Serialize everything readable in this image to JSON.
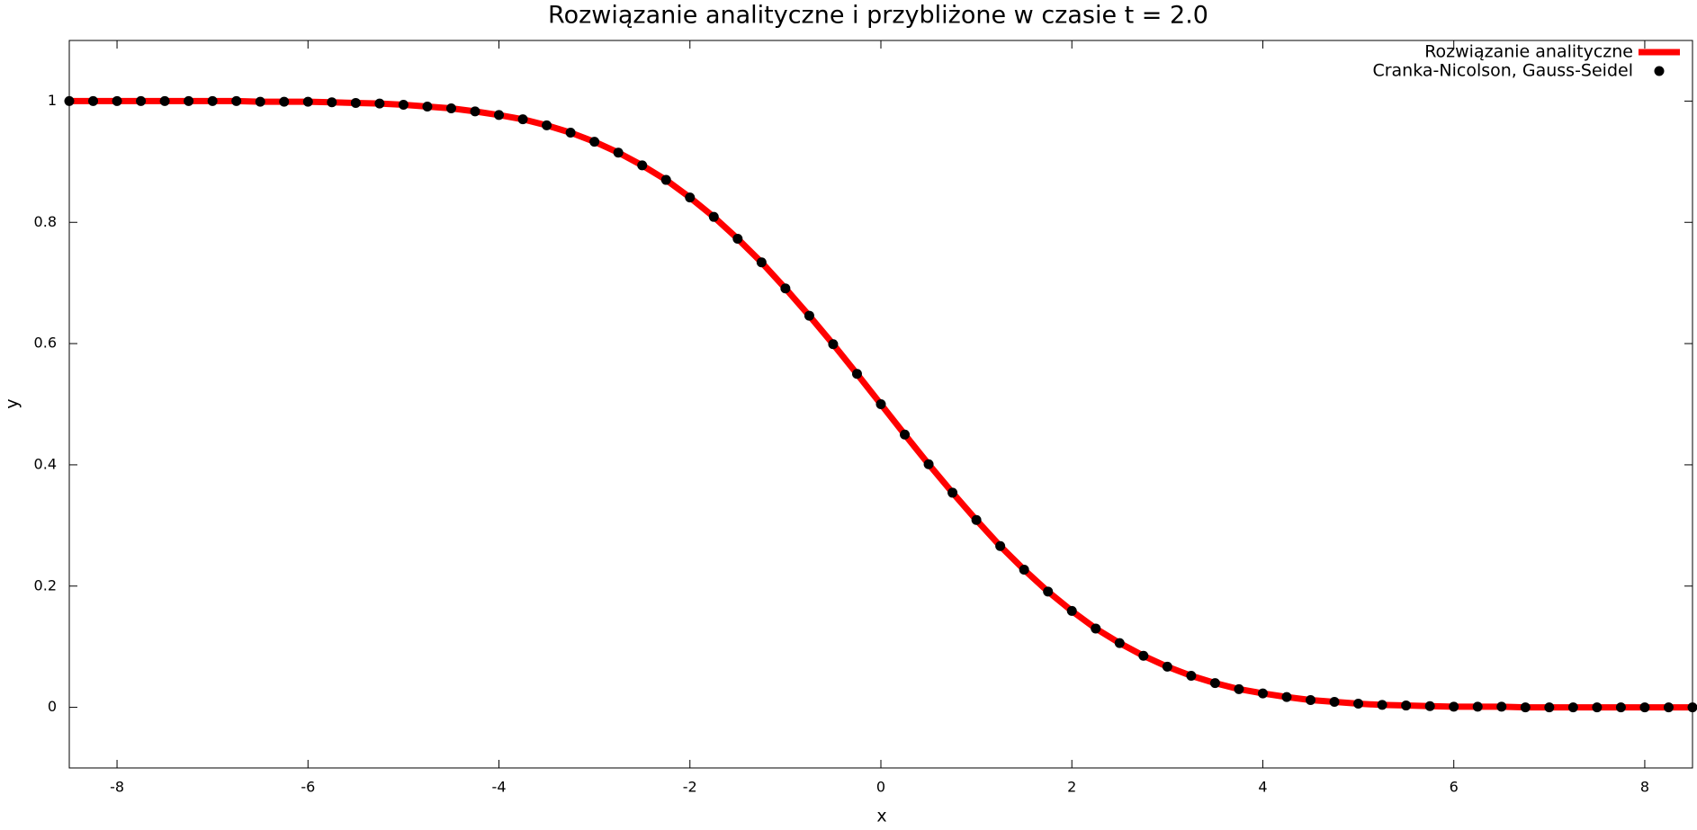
{
  "chart_data": {
    "type": "line",
    "title": "Rozwiązanie analityczne i przybliżone w czasie t = 2.0",
    "x_label": "x",
    "y_label": "y",
    "x": [
      -8.5,
      -8.25,
      -8,
      -7.75,
      -7.5,
      -7.25,
      -7,
      -6.75,
      -6.5,
      -6.25,
      -6,
      -5.75,
      -5.5,
      -5.25,
      -5,
      -4.75,
      -4.5,
      -4.25,
      -4,
      -3.75,
      -3.5,
      -3.25,
      -3,
      -2.75,
      -2.5,
      -2.25,
      -2,
      -1.75,
      -1.5,
      -1.25,
      -1,
      -0.75,
      -0.5,
      -0.25,
      0,
      0.25,
      0.5,
      0.75,
      1,
      1.25,
      1.5,
      1.75,
      2,
      2.25,
      2.5,
      2.75,
      3,
      3.25,
      3.5,
      3.75,
      4,
      4.25,
      4.5,
      4.75,
      5,
      5.25,
      5.5,
      5.75,
      6,
      6.25,
      6.5,
      6.75,
      7,
      7.25,
      7.5,
      7.75,
      8,
      8.25,
      8.5
    ],
    "series": [
      {
        "name": "Rozwiązanie analityczne",
        "color": "#ff0000",
        "mode": "line",
        "values": [
          1,
          1,
          1,
          1,
          1,
          1,
          1,
          1,
          0.999,
          0.999,
          0.999,
          0.998,
          0.997,
          0.996,
          0.994,
          0.991,
          0.988,
          0.983,
          0.977,
          0.97,
          0.96,
          0.948,
          0.933,
          0.915,
          0.894,
          0.87,
          0.841,
          0.809,
          0.773,
          0.734,
          0.691,
          0.646,
          0.599,
          0.55,
          0.5,
          0.45,
          0.401,
          0.354,
          0.309,
          0.266,
          0.227,
          0.191,
          0.159,
          0.13,
          0.106,
          0.085,
          0.067,
          0.052,
          0.04,
          0.03,
          0.023,
          0.017,
          0.012,
          0.009,
          0.006,
          0.004,
          0.003,
          0.002,
          0.001,
          0.001,
          0.001,
          0,
          0,
          0,
          0,
          0,
          0,
          0,
          0
        ]
      },
      {
        "name": "Cranka-Nicolson, Gauss-Seidel",
        "color": "#000000",
        "mode": "markers",
        "values": [
          1,
          1,
          1,
          1,
          1,
          1,
          1,
          1,
          0.999,
          0.999,
          0.999,
          0.998,
          0.997,
          0.996,
          0.994,
          0.991,
          0.988,
          0.983,
          0.977,
          0.97,
          0.96,
          0.948,
          0.933,
          0.915,
          0.894,
          0.87,
          0.841,
          0.809,
          0.773,
          0.734,
          0.691,
          0.646,
          0.599,
          0.55,
          0.5,
          0.45,
          0.401,
          0.354,
          0.309,
          0.266,
          0.227,
          0.191,
          0.159,
          0.13,
          0.106,
          0.085,
          0.067,
          0.052,
          0.04,
          0.03,
          0.023,
          0.017,
          0.012,
          0.009,
          0.006,
          0.004,
          0.003,
          0.002,
          0.001,
          0.001,
          0.001,
          0,
          0,
          0,
          0,
          0,
          0,
          0,
          0
        ]
      }
    ],
    "xlim": [
      -8.5,
      8.5
    ],
    "ylim": [
      -0.1,
      1.1
    ],
    "xticks": [
      -8,
      -6,
      -4,
      -2,
      0,
      2,
      4,
      6,
      8
    ],
    "yticks": [
      0,
      0.2,
      0.4,
      0.6,
      0.8,
      1
    ],
    "grid": false,
    "legend": "top right"
  }
}
